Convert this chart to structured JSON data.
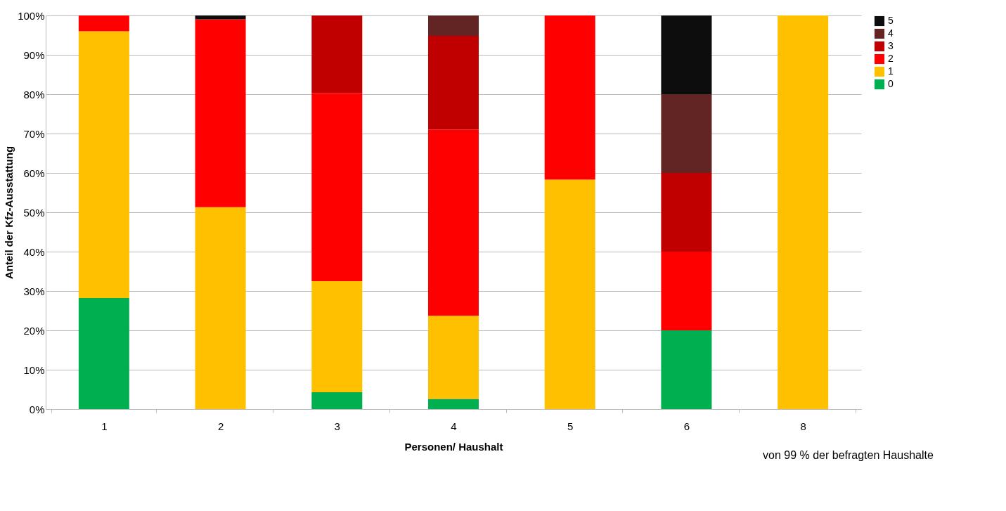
{
  "chart_data": {
    "type": "bar",
    "stacked": true,
    "xlabel": "Personen/ Haushalt",
    "ylabel": "Anteil der Kfz-Ausstattung",
    "categories": [
      "1",
      "2",
      "3",
      "4",
      "5",
      "6",
      "8"
    ],
    "series": [
      {
        "name": "0",
        "color": "#00b050",
        "values": [
          28.2,
          null,
          4.3,
          2.6,
          null,
          20,
          null
        ]
      },
      {
        "name": "1",
        "color": "#ffc000",
        "values": [
          67.8,
          51.3,
          28.2,
          21.1,
          58.3,
          null,
          100
        ]
      },
      {
        "name": "2",
        "color": "#ff0000",
        "values": [
          4,
          47.7,
          47.8,
          47.3,
          41.7,
          20,
          null
        ]
      },
      {
        "name": "3",
        "color": "#c00000",
        "values": [
          null,
          null,
          19.7,
          23.8,
          null,
          20,
          null
        ]
      },
      {
        "name": "4",
        "color": "#632523",
        "values": [
          null,
          null,
          null,
          5.2,
          null,
          20,
          null
        ]
      },
      {
        "name": "5",
        "color": "#0d0d0d",
        "values": [
          null,
          1,
          null,
          null,
          null,
          20,
          null
        ]
      }
    ],
    "ylim": [
      0,
      100
    ],
    "yticks": [
      {
        "value": 0,
        "label": "0%"
      },
      {
        "value": 10,
        "label": "10%"
      },
      {
        "value": 20,
        "label": "20%"
      },
      {
        "value": 30,
        "label": "30%"
      },
      {
        "value": 40,
        "label": "40%"
      },
      {
        "value": 50,
        "label": "50%"
      },
      {
        "value": 60,
        "label": "60%"
      },
      {
        "value": 70,
        "label": "70%"
      },
      {
        "value": 80,
        "label": "80%"
      },
      {
        "value": 90,
        "label": "90%"
      },
      {
        "value": 100,
        "label": "100%"
      }
    ],
    "grid": "y",
    "legend": "right",
    "annotations": [
      "von 99 % der befragten Haushalte"
    ]
  }
}
